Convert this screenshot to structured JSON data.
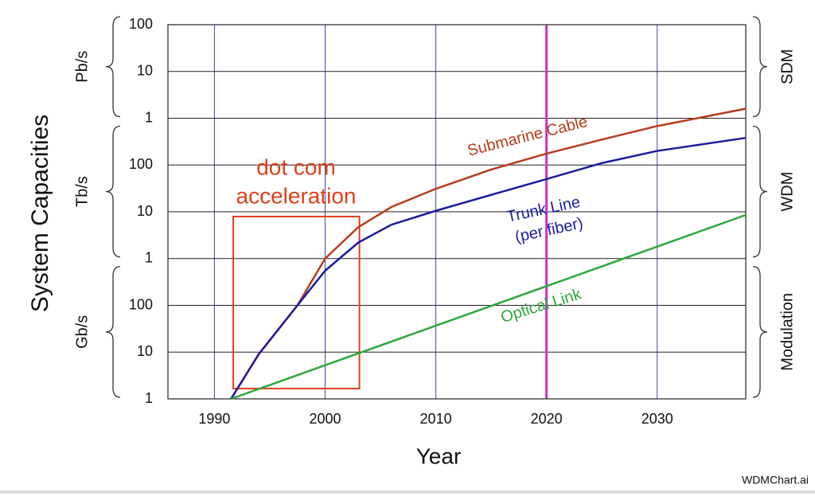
{
  "chart_data": {
    "type": "line",
    "y_label": "System Capacities",
    "x_label": "Year",
    "watermark": "WDMChart.ai",
    "log_y": true,
    "xlim": [
      1985.8,
      2038
    ],
    "xticks": [
      1990,
      2000,
      2010,
      2020,
      2030
    ],
    "ylim": [
      1,
      100000000
    ],
    "yticks": [
      1,
      10,
      100,
      {
        "value": 1000,
        "label": "1"
      },
      {
        "value": 10000,
        "label": "10"
      },
      {
        "value": 100000,
        "label": "100"
      },
      {
        "value": 1000000,
        "label": "1"
      },
      {
        "value": 10000000,
        "label": "10"
      },
      {
        "value": 100000000,
        "label": "100"
      }
    ],
    "grid": true,
    "x_grid_color": "#3a4aa0",
    "highlight_x": 2020,
    "highlight_color": "#cc30d0",
    "left_groups": [
      {
        "label": "Gb/s",
        "range": [
          1,
          100
        ]
      },
      {
        "label": "Tb/s",
        "range": [
          1000,
          100000
        ]
      },
      {
        "label": "Pb/s",
        "range": [
          1000000,
          100000000
        ]
      }
    ],
    "right_groups": [
      {
        "label": "Modulation",
        "range": [
          1,
          100
        ]
      },
      {
        "label": "WDM",
        "range": [
          1000,
          100000
        ]
      },
      {
        "label": "SDM",
        "range": [
          1000000,
          100000000
        ]
      }
    ],
    "series": [
      {
        "name": "Submarine Cable",
        "color": "#b83c1c",
        "x": [
          1991.5,
          1994,
          1997.5,
          2000,
          2003,
          2006,
          2010,
          2015,
          2020,
          2025,
          2030,
          2038
        ],
        "values": [
          1,
          9,
          100,
          1000,
          4700,
          12700,
          31000,
          80000,
          175000,
          350000,
          680000,
          1600000
        ]
      },
      {
        "name": "Trunk Line",
        "note": "(per fiber)",
        "color": "#1c1ca0",
        "x": [
          1991.5,
          1994,
          1997.5,
          2000,
          2003,
          2006,
          2010,
          2015,
          2020,
          2025,
          2030,
          2038
        ],
        "values": [
          1,
          9,
          100,
          550,
          2200,
          5300,
          10500,
          23000,
          50000,
          110000,
          200000,
          380000
        ]
      },
      {
        "name": "Optical Link",
        "color": "#2ca83c",
        "x": [
          1991.5,
          2038
        ],
        "values": [
          1,
          8550
        ]
      }
    ],
    "annotation": {
      "lines": [
        "dot com",
        "acceleration"
      ],
      "color": "#e0401c",
      "x": [
        1991.7,
        2003.1
      ],
      "y": [
        1.66,
        7900
      ]
    }
  }
}
